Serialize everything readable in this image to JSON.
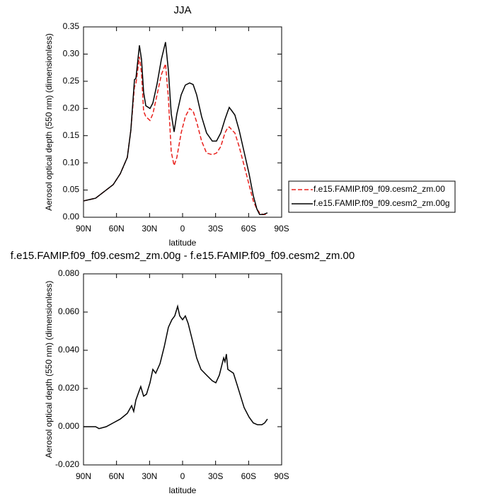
{
  "chart_data": [
    {
      "type": "line",
      "title": "JJA",
      "y_label": "Aerosol optical depth (550 nm) (dimensionless)",
      "x_label": "latitude",
      "x": [
        90,
        79,
        69.4,
        63,
        56.6,
        50.2,
        47,
        43.7,
        42.4,
        39.2,
        37.3,
        35.4,
        33.4,
        29.6,
        27,
        23.2,
        19.3,
        15.5,
        12.9,
        10.3,
        7.7,
        5.2,
        1.3,
        -2.5,
        -6.4,
        -9.6,
        -12.8,
        -17.3,
        -21.8,
        -27,
        -30.8,
        -34.7,
        -38.5,
        -41.1,
        -42.4,
        -45,
        -47.5,
        -51.4,
        -55.9,
        -60.4,
        -64.2,
        -67.5,
        -70,
        -73.2,
        -77.1
      ],
      "xlim": [
        90,
        -90
      ],
      "xticks": [
        {
          "value": 90,
          "label": "90N"
        },
        {
          "value": 60,
          "label": "60N"
        },
        {
          "value": 30,
          "label": "30N"
        },
        0,
        {
          "value": -30,
          "label": "30S"
        },
        {
          "value": -60,
          "label": "60S"
        },
        {
          "value": -90,
          "label": "90S"
        }
      ],
      "ylim": [
        0,
        0.35
      ],
      "yticks": [
        {
          "value": 0,
          "label": "0.00"
        },
        0.05,
        {
          "value": 0.1,
          "label": "0.10"
        },
        0.15,
        {
          "value": 0.2,
          "label": "0.20"
        },
        0.25,
        {
          "value": 0.3,
          "label": "0.30"
        },
        0.35
      ],
      "legend": "right",
      "series": [
        {
          "name": "f.e15.FAMIP.f09_f09.cesm2_zm.00",
          "color": "#e8201c",
          "style": "dashed",
          "values": [
            0.03,
            0.035,
            0.05,
            0.06,
            0.08,
            0.11,
            0.16,
            0.24,
            0.245,
            0.295,
            0.265,
            0.195,
            0.185,
            0.178,
            0.19,
            0.225,
            0.262,
            0.282,
            0.22,
            0.12,
            0.095,
            0.11,
            0.155,
            0.185,
            0.2,
            0.195,
            0.175,
            0.14,
            0.118,
            0.115,
            0.118,
            0.13,
            0.155,
            0.165,
            0.166,
            0.16,
            0.155,
            0.13,
            0.095,
            0.06,
            0.03,
            0.015,
            0.008,
            0.005,
            0.005
          ]
        },
        {
          "name": "f.e15.FAMIP.f09_f09.cesm2_zm.00g",
          "color": "#000000",
          "style": "solid",
          "values": [
            0.03,
            0.035,
            0.05,
            0.06,
            0.08,
            0.11,
            0.16,
            0.253,
            0.255,
            0.316,
            0.29,
            0.23,
            0.205,
            0.2,
            0.21,
            0.245,
            0.29,
            0.322,
            0.27,
            0.19,
            0.157,
            0.19,
            0.225,
            0.243,
            0.247,
            0.244,
            0.225,
            0.185,
            0.155,
            0.14,
            0.14,
            0.155,
            0.18,
            0.195,
            0.202,
            0.195,
            0.188,
            0.16,
            0.12,
            0.08,
            0.04,
            0.015,
            0.005,
            0.005,
            0.008
          ]
        }
      ]
    },
    {
      "type": "line",
      "title": "f.e15.FAMIP.f09_f09.cesm2_zm.00g - f.e15.FAMIP.f09_f09.cesm2_zm.00",
      "y_label": "Aerosol optical depth (550 nm) (dimensionless)",
      "x_label": "latitude",
      "x": [
        90,
        79,
        75.9,
        69.4,
        63,
        56.6,
        50.2,
        46.3,
        44.4,
        42.4,
        39.9,
        38,
        35.4,
        32.8,
        29.6,
        27,
        24.4,
        20.5,
        16.6,
        12.9,
        9.7,
        7.1,
        4.5,
        2.6,
        0,
        -2.5,
        -5.1,
        -9,
        -12.8,
        -16.7,
        -21.8,
        -27,
        -30.2,
        -33.4,
        -36,
        -37.3,
        -38.5,
        -39.8,
        -41.1,
        -43.7,
        -46.2,
        -49.5,
        -52.7,
        -55.9,
        -60.4,
        -64.2,
        -68.1,
        -72,
        -74.6,
        -77.1
      ],
      "xlim": [
        90,
        -90
      ],
      "xticks": [
        {
          "value": 90,
          "label": "90N"
        },
        {
          "value": 60,
          "label": "60N"
        },
        {
          "value": 30,
          "label": "30N"
        },
        0,
        {
          "value": -30,
          "label": "30S"
        },
        {
          "value": -60,
          "label": "60S"
        },
        {
          "value": -90,
          "label": "90S"
        }
      ],
      "ylim": [
        -0.02,
        0.08
      ],
      "yticks": [
        {
          "value": -0.02,
          "label": "-0.020"
        },
        {
          "value": 0,
          "label": "0.000"
        },
        {
          "value": 0.02,
          "label": "0.020"
        },
        {
          "value": 0.04,
          "label": "0.040"
        },
        {
          "value": 0.06,
          "label": "0.060"
        },
        {
          "value": 0.08,
          "label": "0.080"
        }
      ],
      "series": [
        {
          "color": "#000000",
          "style": "solid",
          "values": [
            0.0,
            0.0,
            -0.001,
            0.0,
            0.002,
            0.004,
            0.007,
            0.011,
            0.008,
            0.014,
            0.018,
            0.021,
            0.016,
            0.017,
            0.023,
            0.03,
            0.028,
            0.033,
            0.042,
            0.052,
            0.056,
            0.058,
            0.063,
            0.058,
            0.056,
            0.058,
            0.054,
            0.045,
            0.036,
            0.03,
            0.027,
            0.024,
            0.023,
            0.027,
            0.033,
            0.036,
            0.034,
            0.038,
            0.03,
            0.029,
            0.028,
            0.022,
            0.016,
            0.01,
            0.005,
            0.002,
            0.001,
            0.001,
            0.002,
            0.004
          ]
        }
      ]
    }
  ]
}
